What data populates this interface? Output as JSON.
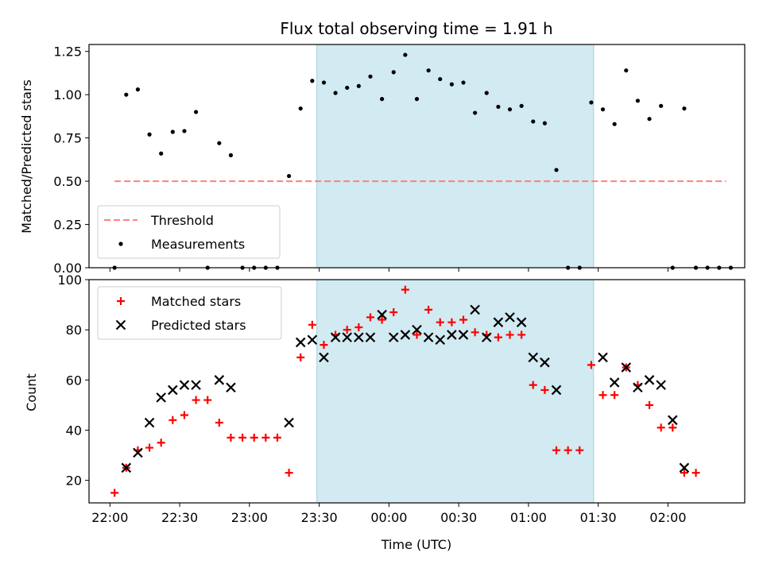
{
  "chart_data": {
    "type": "scatter",
    "title": "Flux total observing time = 1.91 h",
    "xlabel": "Time (UTC)",
    "x_tick_labels": [
      "22:00",
      "22:30",
      "23:00",
      "23:30",
      "00:00",
      "00:30",
      "01:00",
      "01:30",
      "02:00"
    ],
    "x_tick_minutes": [
      0,
      30,
      60,
      90,
      120,
      150,
      180,
      210,
      240
    ],
    "xlim_minutes": [
      -9,
      273
    ],
    "shaded_interval_minutes": [
      89,
      208
    ],
    "shade_color": "#add8e6",
    "panels": [
      {
        "id": "ratio",
        "ylabel": "Matched/Predicted stars",
        "ylim": [
          0,
          1.29
        ],
        "y_ticks": [
          0.0,
          0.25,
          0.5,
          0.75,
          1.0,
          1.25
        ],
        "y_tick_labels": [
          "0.00",
          "0.25",
          "0.50",
          "0.75",
          "1.00",
          "1.25"
        ],
        "legend": {
          "position": "lower left",
          "entries": [
            "Threshold",
            "Measurements"
          ]
        },
        "threshold": {
          "name": "Threshold",
          "value": 0.5,
          "x_range_minutes": [
            2,
            265
          ],
          "color": "#ff8080",
          "style": "dashed"
        },
        "series": [
          {
            "name": "Measurements",
            "marker": "dot",
            "color": "#000000",
            "x_minutes": [
              2,
              7,
              12,
              17,
              22,
              27,
              32,
              37,
              42,
              47,
              52,
              57,
              62,
              67,
              72,
              77,
              82,
              87,
              92,
              97,
              102,
              107,
              112,
              117,
              122,
              127,
              132,
              137,
              142,
              147,
              152,
              157,
              162,
              167,
              172,
              177,
              182,
              187,
              192,
              197,
              202,
              207,
              212,
              217,
              222,
              227,
              232,
              237,
              242,
              247,
              252,
              257,
              262,
              267
            ],
            "y": [
              0.0,
              1.0,
              1.03,
              0.77,
              0.66,
              0.785,
              0.79,
              0.9,
              0.0,
              0.72,
              0.65,
              0.0,
              0.0,
              0.0,
              0.0,
              0.53,
              0.92,
              1.08,
              1.07,
              1.01,
              1.04,
              1.05,
              1.105,
              0.975,
              1.13,
              1.23,
              0.975,
              1.14,
              1.09,
              1.06,
              1.07,
              0.895,
              1.01,
              0.93,
              0.915,
              0.935,
              0.845,
              0.835,
              0.565,
              0.0,
              0.0,
              0.955,
              0.915,
              0.83,
              1.14,
              0.965,
              0.86,
              0.935,
              0.0,
              0.92,
              0.0,
              0,
              0,
              0
            ]
          }
        ]
      },
      {
        "id": "count",
        "ylabel": "Count",
        "ylim": [
          11,
          100
        ],
        "y_ticks": [
          20,
          40,
          60,
          80,
          100
        ],
        "y_tick_labels": [
          "20",
          "40",
          "60",
          "80",
          "100"
        ],
        "legend": {
          "position": "upper left",
          "entries": [
            "Matched stars",
            "Predicted stars"
          ]
        },
        "series": [
          {
            "name": "Matched stars",
            "marker": "plus",
            "color": "#ff0000",
            "x_minutes": [
              2,
              7,
              12,
              17,
              22,
              27,
              32,
              37,
              42,
              47,
              52,
              57,
              62,
              67,
              72,
              77,
              82,
              87,
              92,
              97,
              102,
              107,
              112,
              117,
              122,
              127,
              132,
              137,
              142,
              147,
              152,
              157,
              162,
              167,
              172,
              177,
              182,
              187,
              192,
              197,
              202,
              207,
              212,
              217,
              222,
              227,
              232,
              237,
              242,
              247,
              252
            ],
            "y": [
              15,
              25,
              32,
              33,
              35,
              44,
              46,
              52,
              52,
              43,
              37,
              37,
              37,
              37,
              37,
              23,
              69,
              82,
              74,
              78,
              80,
              81,
              85,
              84,
              87,
              96,
              78,
              88,
              83,
              83,
              84,
              79,
              78,
              77,
              78,
              78,
              58,
              56,
              32,
              32,
              32,
              66,
              54,
              54,
              65,
              58,
              50,
              41,
              41,
              23,
              23
            ]
          },
          {
            "name": "Predicted stars",
            "marker": "x",
            "color": "#000000",
            "x_minutes": [
              7,
              12,
              17,
              22,
              27,
              32,
              37,
              47,
              52,
              77,
              82,
              87,
              92,
              97,
              102,
              107,
              112,
              117,
              122,
              127,
              132,
              137,
              142,
              147,
              152,
              157,
              162,
              167,
              172,
              177,
              182,
              187,
              192,
              212,
              217,
              222,
              227,
              232,
              237,
              242,
              247
            ],
            "y": [
              25,
              31,
              43,
              53,
              56,
              58,
              58,
              60,
              57,
              43,
              75,
              76,
              69,
              77,
              77,
              77,
              77,
              86,
              77,
              78,
              80,
              77,
              76,
              78,
              78,
              88,
              77,
              83,
              85,
              83,
              69,
              67,
              56,
              69,
              59,
              65,
              57,
              60,
              58,
              44,
              25
            ]
          }
        ]
      }
    ]
  }
}
